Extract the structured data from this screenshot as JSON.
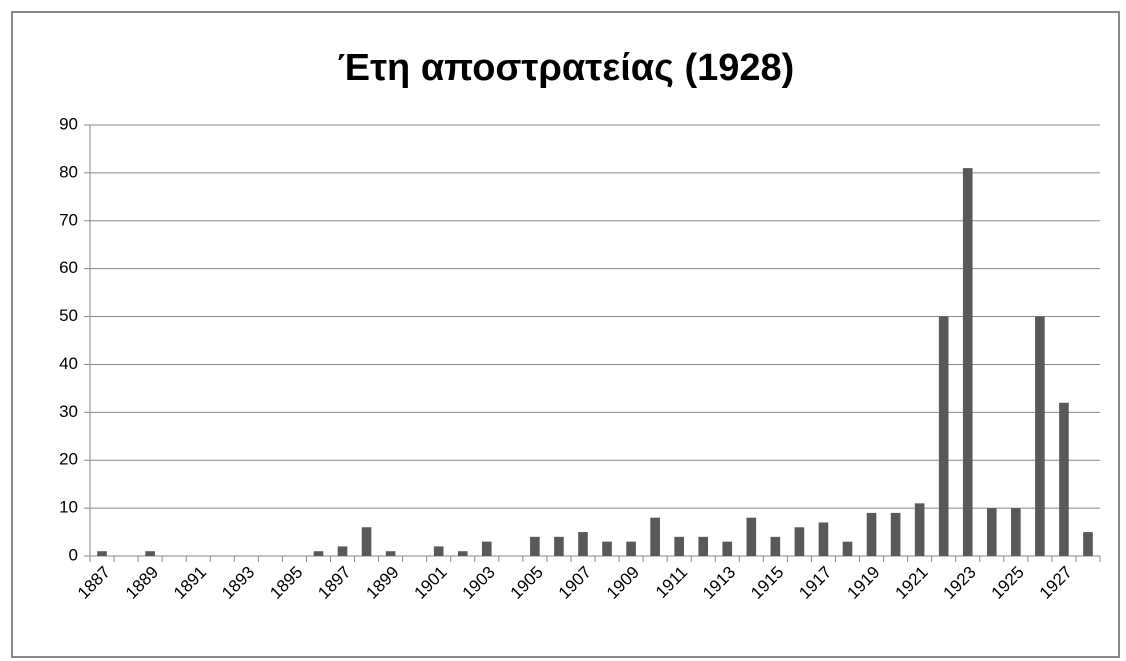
{
  "chart_data": {
    "type": "bar",
    "title": "Έτη αποστρατείας (1928)",
    "categories": [
      "1887",
      null,
      "1889",
      null,
      "1891",
      null,
      "1893",
      null,
      "1895",
      null,
      "1897",
      null,
      "1899",
      null,
      "1901",
      null,
      "1903",
      null,
      "1905",
      null,
      "1907",
      null,
      "1909",
      null,
      "1911",
      null,
      "1913",
      null,
      "1915",
      null,
      "1917",
      null,
      "1919",
      null,
      "1921",
      null,
      "1923",
      null,
      "1925",
      null,
      "1927",
      null
    ],
    "values": [
      1,
      0,
      1,
      0,
      0,
      0,
      0,
      0,
      0,
      1,
      2,
      6,
      1,
      0,
      2,
      1,
      3,
      0,
      4,
      4,
      5,
      3,
      3,
      8,
      4,
      4,
      3,
      8,
      4,
      6,
      7,
      3,
      9,
      9,
      11,
      50,
      81,
      10,
      10,
      50,
      32,
      5
    ],
    "color": "#595959",
    "ylim": [
      0,
      90
    ],
    "yticks": [
      0,
      10,
      20,
      30,
      40,
      50,
      60,
      70,
      80,
      90
    ],
    "grid": true
  }
}
